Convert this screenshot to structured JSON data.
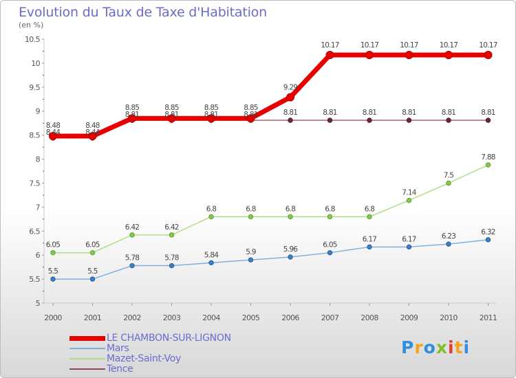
{
  "title": "Evolution du Taux de Taxe d'Habitation",
  "unit_label": "(en %)",
  "logo_text": "Proxiti",
  "chart_data": {
    "type": "line",
    "title": "Evolution du Taux de Taxe d'Habitation",
    "ylabel": "(en %)",
    "xlabel": "",
    "x": [
      "2000",
      "2001",
      "2002",
      "2003",
      "2004",
      "2005",
      "2006",
      "2007",
      "2008",
      "2009",
      "2010",
      "2011"
    ],
    "ylim": [
      5,
      10.5
    ],
    "yticks": [
      "5",
      "5.5",
      "6",
      "6.5",
      "7",
      "7.5",
      "8",
      "8.5",
      "9",
      "9.5",
      "10",
      "10.5"
    ],
    "grid": false,
    "legend_position": "bottom-left",
    "series": [
      {
        "name": "LE CHAMBON-SUR-LIGNON",
        "color": "#e60000",
        "values": [
          8.48,
          8.48,
          8.85,
          8.85,
          8.85,
          8.85,
          9.29,
          10.17,
          10.17,
          10.17,
          10.17,
          10.17
        ],
        "labels": [
          "8.48",
          "8.48",
          "8.85",
          "8.85",
          "8.85",
          "8.85",
          "9.29",
          "10.17",
          "10.17",
          "10.17",
          "10.17",
          "10.17"
        ]
      },
      {
        "name": "Mars",
        "color": "#5a9bd4",
        "values": [
          5.5,
          5.5,
          5.78,
          5.78,
          5.84,
          5.9,
          5.96,
          6.05,
          6.17,
          6.17,
          6.23,
          6.32
        ],
        "labels": [
          "5.5",
          "5.5",
          "5.78",
          "5.78",
          "5.84",
          "5.9",
          "5.96",
          "6.05",
          "6.17",
          "6.17",
          "6.23",
          "6.32"
        ]
      },
      {
        "name": "Mazet-Saint-Voy",
        "color": "#9bd26e",
        "values": [
          6.05,
          6.05,
          6.42,
          6.42,
          6.8,
          6.8,
          6.8,
          6.8,
          6.8,
          7.14,
          7.5,
          7.88
        ],
        "labels": [
          "6.05",
          "6.05",
          "6.42",
          "6.42",
          "6.8",
          "6.8",
          "6.8",
          "6.8",
          "6.8",
          "7.14",
          "7.5",
          "7.88"
        ]
      },
      {
        "name": "Tence",
        "color": "#8b4a55",
        "values": [
          8.44,
          8.44,
          8.81,
          8.81,
          8.81,
          8.81,
          8.81,
          8.81,
          8.81,
          8.81,
          8.81,
          8.81
        ],
        "labels": [
          "8.44",
          "8.44",
          "8.81",
          "8.81",
          "8.81",
          "8.81",
          "8.81",
          "8.81",
          "8.81",
          "8.81",
          "8.81",
          "8.81"
        ]
      }
    ]
  }
}
